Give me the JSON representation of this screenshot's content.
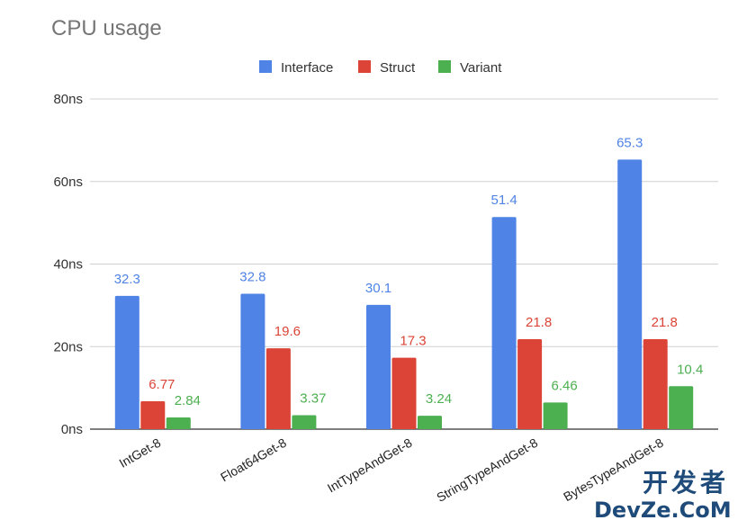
{
  "chart_data": {
    "type": "bar",
    "title": "CPU usage",
    "categories": [
      "IntGet-8",
      "Float64Get-8",
      "IntTypeAndGet-8",
      "StringTypeAndGet-8",
      "BytesTypeAndGet-8"
    ],
    "series": [
      {
        "name": "Interface",
        "color": "#4f83e6",
        "values": [
          32.3,
          32.8,
          30.1,
          51.4,
          65.3
        ]
      },
      {
        "name": "Struct",
        "color": "#db4437",
        "values": [
          6.77,
          19.6,
          17.3,
          21.8,
          21.8
        ]
      },
      {
        "name": "Variant",
        "color": "#4caf50",
        "values": [
          2.84,
          3.37,
          3.24,
          6.46,
          10.4
        ]
      }
    ],
    "y_ticks": [
      "0ns",
      "20ns",
      "40ns",
      "60ns",
      "80ns"
    ],
    "ylim": [
      0,
      80
    ],
    "grid": true,
    "legend_position": "top"
  },
  "watermark": {
    "line1": "开发者",
    "line2": "DevZe.CoM"
  }
}
